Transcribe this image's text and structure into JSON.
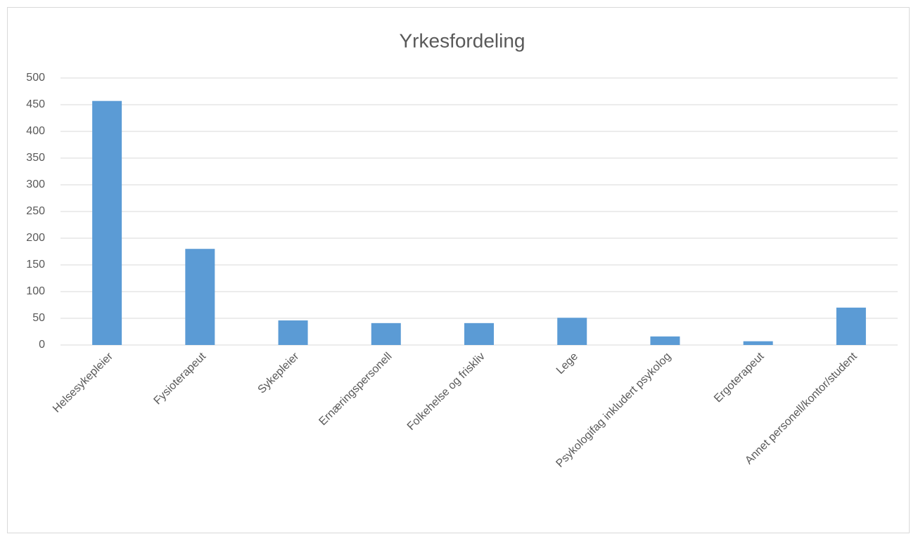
{
  "chart_data": {
    "type": "bar",
    "title": "Yrkesfordeling",
    "categories": [
      "Helsesykepleier",
      "Fysioterapeut",
      "Sykepleier",
      "Ernæringspersonell",
      "Folkehelse og friskliv",
      "Lege",
      "Psykologifag inkludert psykolog",
      "Ergoterapeut",
      "Annet personell/kontor/student"
    ],
    "values": [
      457,
      180,
      46,
      41,
      41,
      51,
      16,
      7,
      70
    ],
    "color": "#5b9bd5",
    "ylim": [
      0,
      500
    ],
    "yticks": [
      0,
      50,
      100,
      150,
      200,
      250,
      300,
      350,
      400,
      450,
      500
    ],
    "grid": true
  }
}
